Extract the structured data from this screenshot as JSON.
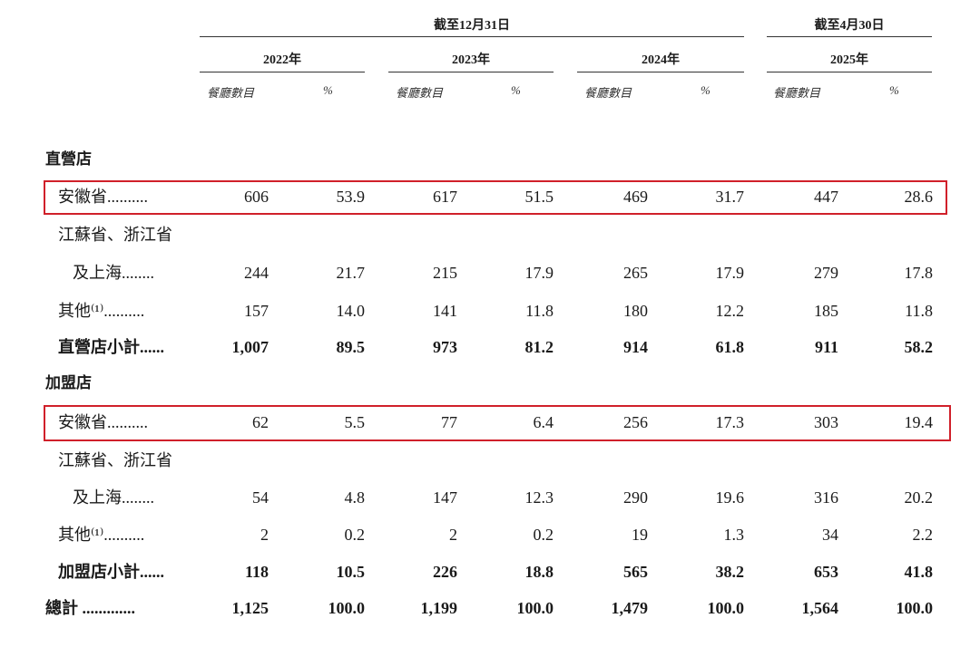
{
  "header": {
    "group_dec31": "截至12月31日",
    "group_apr30": "截至4月30日",
    "years": [
      "2022年",
      "2023年",
      "2024年",
      "2025年"
    ],
    "sub_count": "餐廳數目",
    "sub_pct": "%"
  },
  "sections": {
    "direct": "直營店",
    "franchise": "加盟店"
  },
  "rows": {
    "d_anhui": {
      "label": "安徽省..........",
      "values": [
        "606",
        "53.9",
        "617",
        "51.5",
        "469",
        "31.7",
        "447",
        "28.6"
      ]
    },
    "d_jz_line1": {
      "label": "江蘇省、浙江省"
    },
    "d_jz": {
      "label": "及上海........",
      "values": [
        "244",
        "21.7",
        "215",
        "17.9",
        "265",
        "17.9",
        "279",
        "17.8"
      ]
    },
    "d_other": {
      "label": "其他⁽¹⁾..........",
      "values": [
        "157",
        "14.0",
        "141",
        "11.8",
        "180",
        "12.2",
        "185",
        "11.8"
      ]
    },
    "d_sub": {
      "label": "直營店小計......",
      "values": [
        "1,007",
        "89.5",
        "973",
        "81.2",
        "914",
        "61.8",
        "911",
        "58.2"
      ]
    },
    "f_anhui": {
      "label": "安徽省..........",
      "values": [
        "62",
        "5.5",
        "77",
        "6.4",
        "256",
        "17.3",
        "303",
        "19.4"
      ]
    },
    "f_jz_line1": {
      "label": "江蘇省、浙江省"
    },
    "f_jz": {
      "label": "及上海........",
      "values": [
        "54",
        "4.8",
        "147",
        "12.3",
        "290",
        "19.6",
        "316",
        "20.2"
      ]
    },
    "f_other": {
      "label": "其他⁽¹⁾..........",
      "values": [
        "2",
        "0.2",
        "2",
        "0.2",
        "19",
        "1.3",
        "34",
        "2.2"
      ]
    },
    "f_sub": {
      "label": "加盟店小計......",
      "values": [
        "118",
        "10.5",
        "226",
        "18.8",
        "565",
        "38.2",
        "653",
        "41.8"
      ]
    },
    "total": {
      "label": "總計 .............",
      "values": [
        "1,125",
        "100.0",
        "1,199",
        "100.0",
        "1,479",
        "100.0",
        "1,564",
        "100.0"
      ]
    }
  },
  "highlight_color": "#d0202a"
}
